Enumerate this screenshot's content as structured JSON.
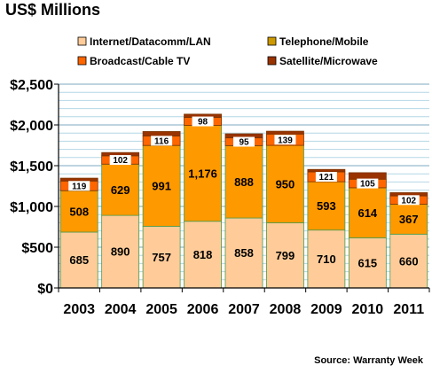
{
  "chart_data": {
    "type": "bar",
    "stacked": true,
    "title": "US$ Millions",
    "source": "Source: Warranty Week",
    "categories": [
      "2003",
      "2004",
      "2005",
      "2006",
      "2007",
      "2008",
      "2009",
      "2010",
      "2011"
    ],
    "ylim": [
      0,
      2500
    ],
    "yticks": [
      0,
      500,
      1000,
      1500,
      2000,
      2500
    ],
    "ytick_labels": [
      "$0",
      "$500",
      "$1,000",
      "$1,500",
      "$2,000",
      "$2,500"
    ],
    "grid": true,
    "legend_position": "top",
    "series": [
      {
        "name": "Internet/Datacomm/LAN",
        "color": "#FFCC99",
        "values": [
          685,
          890,
          757,
          818,
          858,
          799,
          710,
          615,
          660
        ],
        "labels": [
          "685",
          "890",
          "757",
          "818",
          "858",
          "799",
          "710",
          "615",
          "660"
        ]
      },
      {
        "name": "Telephone/Mobile",
        "color": "#FF9900",
        "values": [
          508,
          629,
          991,
          1176,
          888,
          950,
          593,
          614,
          367
        ],
        "labels": [
          "508",
          "629",
          "991",
          "1,176",
          "888",
          "950",
          "593",
          "614",
          "367"
        ]
      },
      {
        "name": "Broadcast/Cable TV",
        "color": "#FF6600",
        "values": [
          119,
          102,
          116,
          98,
          95,
          139,
          121,
          105,
          102
        ],
        "labels": [
          "119",
          "102",
          "116",
          "98",
          "95",
          "139",
          "121",
          "105",
          "102"
        ]
      },
      {
        "name": "Satellite/Microwave",
        "color": "#993300",
        "values": [
          35,
          40,
          55,
          40,
          50,
          35,
          30,
          80,
          40
        ],
        "labels": [
          "",
          "",
          "",
          "",
          "",
          "",
          "",
          "",
          ""
        ]
      }
    ],
    "legend_order": [
      "Internet/Datacomm/LAN",
      "Telephone/Mobile",
      "Broadcast/Cable TV",
      "Satellite/Microwave"
    ],
    "legend_swatches": [
      "#FFCC99",
      "#CC9900",
      "#FF6600",
      "#993300"
    ]
  }
}
